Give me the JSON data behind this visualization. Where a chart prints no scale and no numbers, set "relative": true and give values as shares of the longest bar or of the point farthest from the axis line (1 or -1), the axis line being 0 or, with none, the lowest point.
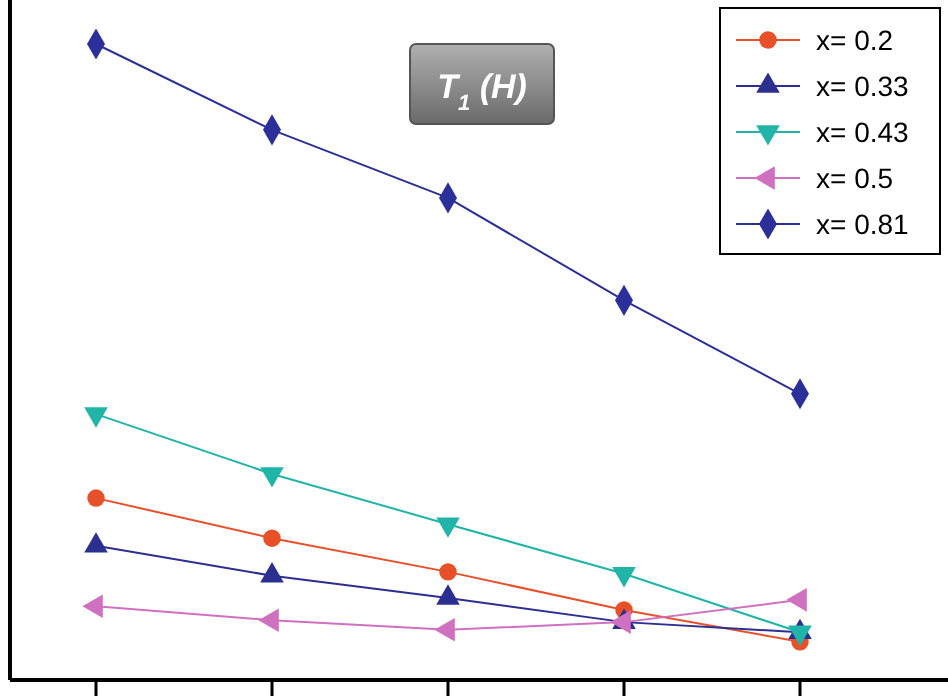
{
  "chart_data": {
    "type": "line",
    "title": "T$_{1}$ (H)",
    "relative": true,
    "categories": [
      null,
      null,
      null,
      null,
      null
    ],
    "legend": "top right",
    "series": [
      {
        "name": "x= 0.2",
        "color": "#e8502a",
        "marker": "circle",
        "values": [
          0.286,
          0.223,
          0.17,
          0.11,
          0.06
        ]
      },
      {
        "name": "x= 0.33",
        "color": "#2b2f8f",
        "marker": "triangle",
        "values": [
          0.211,
          0.164,
          0.129,
          0.091,
          0.075
        ]
      },
      {
        "name": "x= 0.43",
        "color": "#20b5a8",
        "marker": "triangle-down",
        "values": [
          0.418,
          0.324,
          0.245,
          0.167,
          0.075
        ]
      },
      {
        "name": "x= 0.5",
        "color": "#d070c0",
        "marker": "triangle-left",
        "values": [
          0.116,
          0.094,
          0.079,
          0.091,
          0.126
        ]
      },
      {
        "name": "x= 0.81",
        "color": "#2b2f9a",
        "marker": "diamond",
        "values": [
          1,
          0.865,
          0.758,
          0.597,
          0.45
        ]
      }
    ]
  }
}
